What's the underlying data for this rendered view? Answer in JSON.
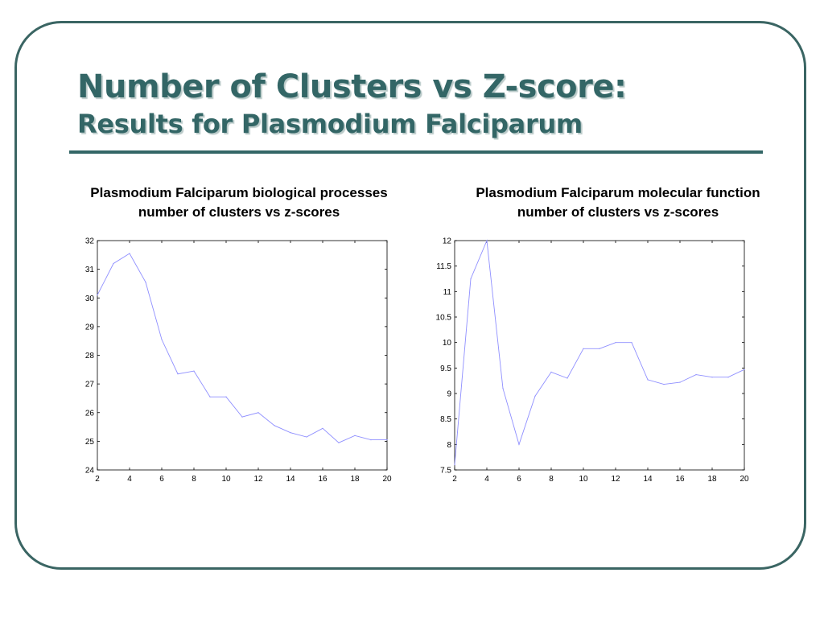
{
  "slide": {
    "title_line1": "Number of Clusters vs Z-score:",
    "title_line2": "Results for Plasmodium Falciparum",
    "colors": {
      "title": "#336666",
      "frame": "#3a6563",
      "series": "#8f8fff"
    }
  },
  "chart_data": [
    {
      "type": "line",
      "caption_line1": "Plasmodium Falciparum biological processes",
      "caption_line2": "number of clusters vs z-scores",
      "xlim": [
        2,
        20
      ],
      "ylim": [
        24,
        32
      ],
      "xticks": [
        "2",
        "4",
        "6",
        "8",
        "10",
        "12",
        "14",
        "16",
        "18",
        "20"
      ],
      "yticks": [
        "24",
        "25",
        "26",
        "27",
        "28",
        "29",
        "30",
        "31",
        "32"
      ],
      "grid": false,
      "series": [
        {
          "x": [
            2,
            3,
            4,
            5,
            6,
            7,
            8,
            9,
            10,
            11,
            12,
            13,
            14,
            15,
            16,
            17,
            18,
            19,
            20
          ],
          "y": [
            30.1,
            31.2,
            31.55,
            30.55,
            28.55,
            27.35,
            27.45,
            26.55,
            26.55,
            25.85,
            26.0,
            25.55,
            25.3,
            25.15,
            25.45,
            24.95,
            25.2,
            25.05,
            25.05
          ]
        }
      ]
    },
    {
      "type": "line",
      "caption_line1": "Plasmodium Falciparum molecular function",
      "caption_line2": "number of clusters vs z-scores",
      "xlim": [
        2,
        20
      ],
      "ylim": [
        7.5,
        12
      ],
      "xticks": [
        "2",
        "4",
        "6",
        "8",
        "10",
        "12",
        "14",
        "16",
        "18",
        "20"
      ],
      "yticks": [
        "7.5",
        "8",
        "8.5",
        "9",
        "9.5",
        "10",
        "10.5",
        "11",
        "11.5",
        "12"
      ],
      "grid": false,
      "series": [
        {
          "x": [
            2,
            3,
            4,
            5,
            6,
            7,
            8,
            9,
            10,
            11,
            12,
            13,
            14,
            15,
            16,
            17,
            18,
            19,
            20
          ],
          "y": [
            7.6,
            11.25,
            12.0,
            9.1,
            8.0,
            8.95,
            9.42,
            9.3,
            9.88,
            9.88,
            10.0,
            10.0,
            9.27,
            9.18,
            9.22,
            9.37,
            9.32,
            9.32,
            9.47
          ]
        }
      ]
    }
  ]
}
